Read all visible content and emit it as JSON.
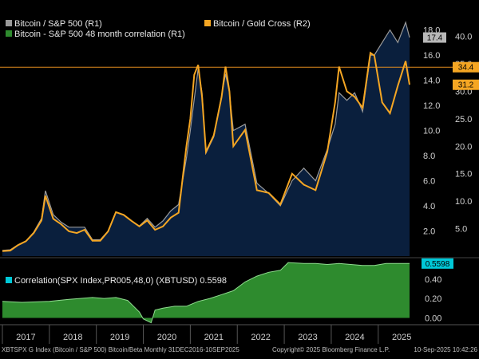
{
  "legend": {
    "btc_spx": "Bitcoin / S&P 500 (R1)",
    "btc_gold": "Bitcoin / Gold Cross (R2)",
    "corr48": "Bitcoin - S&P 500 48 month correlation (R1)",
    "corr_panel": "Correlation(SPX Index,PR005,48,0) (XBTUSD) 0.5598"
  },
  "tags": {
    "btc_spx": "17.4",
    "r2_hline": "34.4",
    "btc_gold": "31.2",
    "corr": "0.5598"
  },
  "footer": {
    "left": "XBTSPX G Index (Bitcoin / S&P 500) Bitcoin/Beta  Monthly 31DEC2016-10SEP2025",
    "center": "Copyright© 2025 Bloomberg Finance L.P.",
    "right": "10-Sep-2025 10:42:26"
  },
  "colors": {
    "background": "#000000",
    "area_fill": "#0a1f3d",
    "btc_spx": "#9a9a9a",
    "btc_gold": "#f5a623",
    "hline": "#e08a1e",
    "corr_fill": "#2e8b2e",
    "corr_line": "#8fdc8f",
    "corr_tag": "#00c8d7"
  },
  "chart_data": [
    {
      "type": "area",
      "ylim": [
        0,
        18.8
      ],
      "y2lim": [
        0,
        43.0
      ],
      "yticks": [
        2.0,
        4.0,
        6.0,
        8.0,
        10.0,
        12.0,
        14.0,
        16.0,
        18.0
      ],
      "y2ticks": [
        5.0,
        10.0,
        15.0,
        20.0,
        25.0,
        30.0,
        35.0,
        40.0
      ],
      "x_years": [
        "2017",
        "2018",
        "2019",
        "2020",
        "2021",
        "2022",
        "2023",
        "2024",
        "2025"
      ],
      "x_range": [
        "2017-01",
        "2025-09"
      ],
      "hline_r2": 34.4,
      "series": [
        {
          "name": "Bitcoin / S&P 500 (R1)",
          "axis": "R1",
          "x": [
            "2017-01",
            "2017-03",
            "2017-05",
            "2017-07",
            "2017-09",
            "2017-11",
            "2017-12",
            "2018-02",
            "2018-04",
            "2018-06",
            "2018-08",
            "2018-10",
            "2018-12",
            "2019-02",
            "2019-04",
            "2019-06",
            "2019-08",
            "2019-10",
            "2019-12",
            "2020-02",
            "2020-04",
            "2020-06",
            "2020-08",
            "2020-10",
            "2020-12",
            "2021-01",
            "2021-02",
            "2021-03",
            "2021-04",
            "2021-05",
            "2021-07",
            "2021-09",
            "2021-10",
            "2021-11",
            "2021-12",
            "2022-03",
            "2022-06",
            "2022-09",
            "2022-12",
            "2023-03",
            "2023-06",
            "2023-09",
            "2023-12",
            "2024-02",
            "2024-03",
            "2024-05",
            "2024-07",
            "2024-09",
            "2024-11",
            "2024-12",
            "2025-02",
            "2025-04",
            "2025-06",
            "2025-08",
            "2025-09"
          ],
          "y": [
            0.45,
            0.5,
            0.9,
            1.2,
            1.9,
            3.0,
            5.2,
            3.3,
            2.7,
            2.3,
            2.3,
            2.3,
            1.3,
            1.3,
            2.0,
            3.5,
            3.3,
            2.8,
            2.4,
            3.0,
            2.3,
            2.8,
            3.6,
            4.1,
            7.8,
            10.0,
            12.5,
            14.9,
            13.0,
            8.2,
            9.5,
            12.8,
            14.5,
            13.0,
            10.0,
            10.5,
            5.8,
            5.0,
            4.0,
            6.0,
            7.0,
            6.0,
            8.5,
            10.5,
            13.0,
            12.4,
            13.0,
            11.5,
            16.0,
            16.0,
            17.0,
            18.0,
            17.0,
            18.6,
            17.4
          ]
        },
        {
          "name": "Bitcoin / Gold Cross (R2)",
          "axis": "R2",
          "x": [
            "2017-01",
            "2017-03",
            "2017-05",
            "2017-07",
            "2017-09",
            "2017-11",
            "2017-12",
            "2018-02",
            "2018-04",
            "2018-06",
            "2018-08",
            "2018-10",
            "2018-12",
            "2019-02",
            "2019-04",
            "2019-06",
            "2019-08",
            "2019-10",
            "2019-12",
            "2020-02",
            "2020-04",
            "2020-06",
            "2020-08",
            "2020-10",
            "2020-12",
            "2021-01",
            "2021-02",
            "2021-03",
            "2021-04",
            "2021-05",
            "2021-07",
            "2021-09",
            "2021-10",
            "2021-11",
            "2021-12",
            "2022-03",
            "2022-06",
            "2022-09",
            "2022-12",
            "2023-03",
            "2023-06",
            "2023-09",
            "2023-12",
            "2024-02",
            "2024-03",
            "2024-05",
            "2024-07",
            "2024-09",
            "2024-11",
            "2024-12",
            "2025-02",
            "2025-04",
            "2025-06",
            "2025-08",
            "2025-09"
          ],
          "y": [
            0.9,
            1.0,
            2.0,
            2.7,
            4.2,
            6.5,
            11.0,
            6.8,
            5.8,
            4.5,
            4.2,
            4.8,
            2.8,
            2.8,
            4.5,
            8.0,
            7.5,
            6.4,
            5.4,
            6.5,
            4.8,
            5.4,
            7.0,
            7.9,
            20.0,
            25.0,
            33.0,
            34.8,
            29.0,
            19.0,
            22.0,
            29.0,
            34.5,
            30.0,
            20.0,
            23.0,
            12.0,
            11.5,
            9.4,
            15.0,
            13.0,
            12.0,
            19.0,
            28.0,
            34.5,
            30.0,
            29.0,
            27.0,
            37.0,
            36.5,
            28.0,
            26.0,
            31.0,
            35.5,
            31.2
          ]
        }
      ]
    },
    {
      "type": "area",
      "title": "Correlation(SPX Index,PR005,48,0) (XBTUSD) 0.5598",
      "ylim": [
        -0.07,
        0.62
      ],
      "yticks": [
        0.0,
        0.2,
        0.4
      ],
      "x_years": [
        "2017",
        "2018",
        "2019",
        "2020",
        "2021",
        "2022",
        "2023",
        "2024",
        "2025"
      ],
      "series": [
        {
          "name": "Bitcoin - S&P 500 48 month correlation (R1)",
          "x": [
            "2017-01",
            "2017-06",
            "2018-01",
            "2018-06",
            "2018-12",
            "2019-03",
            "2019-06",
            "2019-09",
            "2019-12",
            "2020-01",
            "2020-03",
            "2020-04",
            "2020-06",
            "2020-09",
            "2020-12",
            "2021-03",
            "2021-06",
            "2021-09",
            "2021-12",
            "2022-03",
            "2022-06",
            "2022-09",
            "2022-12",
            "2023-02",
            "2023-06",
            "2023-09",
            "2023-12",
            "2024-03",
            "2024-06",
            "2024-09",
            "2024-12",
            "2025-03",
            "2025-06",
            "2025-09"
          ],
          "y": [
            0.17,
            0.16,
            0.17,
            0.19,
            0.21,
            0.2,
            0.21,
            0.18,
            0.06,
            -0.01,
            -0.05,
            0.08,
            0.1,
            0.12,
            0.12,
            0.17,
            0.2,
            0.24,
            0.28,
            0.37,
            0.43,
            0.47,
            0.49,
            0.57,
            0.56,
            0.56,
            0.55,
            0.56,
            0.55,
            0.54,
            0.54,
            0.56,
            0.56,
            0.5598
          ]
        }
      ]
    }
  ]
}
